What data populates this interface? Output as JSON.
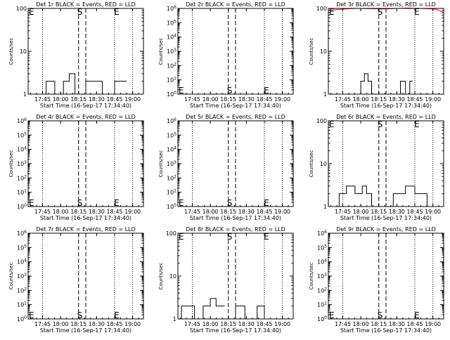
{
  "chart_data": [
    {
      "type": "line",
      "scale": "log",
      "title": "Det 1r BLACK = Events, RED = LLD",
      "xlabel": "Start Time (16-Sep-17 17:34:40)",
      "ylabel": "Counts/sec",
      "xticks": [
        "17:45",
        "18:00",
        "18:15",
        "18:30",
        "18:45",
        "19:00"
      ],
      "yticks": [
        {
          "label": "1",
          "sup": ""
        },
        {
          "label": "10",
          "sup": ""
        },
        {
          "label": "100",
          "sup": ""
        }
      ],
      "ylim": [
        1,
        100
      ],
      "markers": {
        "S": "S",
        "E": "E"
      },
      "marker_y": 100,
      "series": [
        {
          "color": "#000000",
          "segments": [
            {
              "x": [
                17.64,
                17.8,
                17.8,
                17.92,
                17.92,
                18.04,
                18.04,
                18.12,
                18.12,
                18.2,
                18.2
              ],
              "y": [
                1,
                1,
                2,
                2,
                1,
                1,
                2,
                2,
                3,
                3,
                1
              ]
            },
            {
              "x": [
                18.35,
                18.35,
                18.58,
                18.58,
                18.75,
                18.75,
                18.92
              ],
              "y": [
                1,
                2,
                2,
                1,
                1,
                2,
                2
              ]
            }
          ]
        }
      ]
    },
    {
      "type": "line",
      "scale": "log",
      "title": "Det 2r BLACK = Events, RED = LLD",
      "xlabel": "Start Time (16-Sep-17 17:34:40)",
      "ylabel": "Counts/sec",
      "xticks": [
        "17:45",
        "18:00",
        "18:15",
        "18:30",
        "18:45",
        "19:00"
      ],
      "yticks": [
        {
          "label": "10",
          "sup": "0"
        },
        {
          "label": "10",
          "sup": "1"
        },
        {
          "label": "10",
          "sup": "2"
        },
        {
          "label": "10",
          "sup": "3"
        },
        {
          "label": "10",
          "sup": "4"
        },
        {
          "label": "10",
          "sup": "5"
        },
        {
          "label": "10",
          "sup": "6"
        }
      ],
      "ylim": [
        1,
        1000000
      ],
      "markers": {
        "S": "S",
        "E": "E"
      },
      "marker_y": 1,
      "series": []
    },
    {
      "type": "line",
      "scale": "log",
      "title": "Det 3r BLACK = Events, RED = LLD",
      "xlabel": "Start Time (16-Sep-17 17:34:40)",
      "ylabel": "Counts/sec",
      "xticks": [
        "17:45",
        "18:00",
        "18:15",
        "18:30",
        "18:45",
        "19:00"
      ],
      "yticks": [
        {
          "label": "1",
          "sup": ""
        },
        {
          "label": "10",
          "sup": ""
        },
        {
          "label": "100",
          "sup": ""
        }
      ],
      "ylim": [
        1,
        100
      ],
      "markers": {
        "S": "S",
        "E": "E"
      },
      "marker_y": 100,
      "series": [
        {
          "color": "#ff0000",
          "segments": [
            {
              "x": [
                17.58,
                17.7,
                17.82,
                17.95,
                18.05,
                18.2,
                18.35,
                18.5,
                18.65,
                18.8,
                18.95,
                19.05,
                19.1,
                19.15
              ],
              "y": [
                90,
                95,
                98,
                100,
                99,
                98,
                97,
                100,
                102,
                100,
                98,
                95,
                88,
                80
              ]
            }
          ]
        },
        {
          "color": "#000000",
          "segments": [
            {
              "x": [
                18.0,
                18.0,
                18.05,
                18.05,
                18.1,
                18.1,
                18.15,
                18.15,
                18.2
              ],
              "y": [
                1,
                2,
                2,
                3,
                3,
                2,
                2,
                1,
                1
              ]
            },
            {
              "x": [
                18.55,
                18.55,
                18.62,
                18.62,
                18.68,
                18.68,
                18.72
              ],
              "y": [
                1,
                2,
                2,
                1,
                1,
                2,
                2
              ]
            }
          ]
        }
      ]
    },
    {
      "type": "line",
      "scale": "log",
      "title": "Det 4r BLACK = Events, RED = LLD",
      "xlabel": "Start Time (16-Sep-17 17:34:40)",
      "ylabel": "Counts/sec",
      "xticks": [
        "17:45",
        "18:00",
        "18:15",
        "18:30",
        "18:45",
        "19:00"
      ],
      "yticks": [
        {
          "label": "10",
          "sup": "0"
        },
        {
          "label": "10",
          "sup": "1"
        },
        {
          "label": "10",
          "sup": "2"
        },
        {
          "label": "10",
          "sup": "3"
        },
        {
          "label": "10",
          "sup": "4"
        },
        {
          "label": "10",
          "sup": "5"
        },
        {
          "label": "10",
          "sup": "6"
        }
      ],
      "ylim": [
        1,
        1000000
      ],
      "markers": {
        "S": "S",
        "E": "E"
      },
      "marker_y": 1,
      "series": []
    },
    {
      "type": "line",
      "scale": "log",
      "title": "Det 5r BLACK = Events, RED = LLD",
      "xlabel": "Start Time (16-Sep-17 17:34:40)",
      "ylabel": "Counts/sec",
      "xticks": [
        "17:45",
        "18:00",
        "18:15",
        "18:30",
        "18:45",
        "19:00"
      ],
      "yticks": [
        {
          "label": "10",
          "sup": "0"
        },
        {
          "label": "10",
          "sup": "1"
        },
        {
          "label": "10",
          "sup": "2"
        },
        {
          "label": "10",
          "sup": "3"
        },
        {
          "label": "10",
          "sup": "4"
        },
        {
          "label": "10",
          "sup": "5"
        },
        {
          "label": "10",
          "sup": "6"
        }
      ],
      "ylim": [
        1,
        1000000
      ],
      "markers": {
        "S": "S",
        "E": "E"
      },
      "marker_y": 1,
      "series": []
    },
    {
      "type": "line",
      "scale": "log",
      "title": "Det 6r BLACK = Events, RED = LLD",
      "xlabel": "Start Time (16-Sep-17 17:34:40)",
      "ylabel": "Counts/sec",
      "xticks": [
        "17:45",
        "18:00",
        "18:15",
        "18:30",
        "18:45",
        "19:00"
      ],
      "yticks": [
        {
          "label": "1",
          "sup": ""
        },
        {
          "label": "10",
          "sup": ""
        },
        {
          "label": "100",
          "sup": ""
        }
      ],
      "ylim": [
        1,
        100
      ],
      "markers": {
        "S": "S",
        "E": "E"
      },
      "marker_y": 100,
      "series": [
        {
          "color": "#000000",
          "segments": [
            {
              "x": [
                17.7,
                17.7,
                17.8,
                17.8,
                17.92,
                17.92,
                18.02,
                18.02,
                18.08,
                18.08,
                18.15,
                18.15,
                18.2
              ],
              "y": [
                1,
                2,
                2,
                3,
                3,
                2,
                2,
                3,
                3,
                2,
                2,
                1,
                1
              ]
            },
            {
              "x": [
                18.45,
                18.45,
                18.62,
                18.62,
                18.75,
                18.75,
                18.92,
                18.92,
                19.0
              ],
              "y": [
                1,
                2,
                2,
                3,
                3,
                2,
                2,
                1,
                1
              ]
            }
          ]
        }
      ]
    },
    {
      "type": "line",
      "scale": "log",
      "title": "Det 7r BLACK = Events, RED = LLD",
      "xlabel": "Start Time (16-Sep-17 17:34:40)",
      "ylabel": "Counts/sec",
      "xticks": [
        "17:45",
        "18:00",
        "18:15",
        "18:30",
        "18:45",
        "19:00"
      ],
      "yticks": [
        {
          "label": "10",
          "sup": "0"
        },
        {
          "label": "10",
          "sup": "1"
        },
        {
          "label": "10",
          "sup": "2"
        },
        {
          "label": "10",
          "sup": "3"
        },
        {
          "label": "10",
          "sup": "4"
        },
        {
          "label": "10",
          "sup": "5"
        },
        {
          "label": "10",
          "sup": "6"
        }
      ],
      "ylim": [
        1,
        1000000
      ],
      "markers": {
        "S": "S",
        "E": "E"
      },
      "marker_y": 1,
      "series": []
    },
    {
      "type": "line",
      "scale": "log",
      "title": "Det 8r BLACK = Events, RED = LLD",
      "xlabel": "Start Time (16-Sep-17 17:34:40)",
      "ylabel": "Counts/sec",
      "xticks": [
        "17:45",
        "18:00",
        "18:15",
        "18:30",
        "18:45",
        "19:00"
      ],
      "yticks": [
        {
          "label": "1",
          "sup": ""
        },
        {
          "label": "10",
          "sup": ""
        },
        {
          "label": "100",
          "sup": ""
        }
      ],
      "ylim": [
        1,
        100
      ],
      "markers": {
        "S": "S",
        "E": "E"
      },
      "marker_y": 100,
      "series": [
        {
          "color": "#000000",
          "segments": [
            {
              "x": [
                17.6,
                17.6,
                17.78,
                17.78,
                17.9,
                17.9,
                18.0,
                18.0,
                18.08,
                18.08,
                18.2
              ],
              "y": [
                1,
                2,
                2,
                1,
                1,
                2,
                2,
                3,
                3,
                2,
                2
              ]
            },
            {
              "x": [
                18.35,
                18.35,
                18.48,
                18.48,
                18.65,
                18.65,
                18.75,
                18.75,
                19.0
              ],
              "y": [
                1,
                2,
                2,
                1,
                1,
                2,
                2,
                1,
                1
              ]
            }
          ]
        }
      ]
    },
    {
      "type": "line",
      "scale": "log",
      "title": "Det 9r BLACK = Events, RED = LLD",
      "xlabel": "Start Time (16-Sep-17 17:34:40)",
      "ylabel": "Counts/sec",
      "xticks": [
        "17:45",
        "18:00",
        "18:15",
        "18:30",
        "18:45",
        "19:00"
      ],
      "yticks": [
        {
          "label": "10",
          "sup": "0"
        },
        {
          "label": "10",
          "sup": "1"
        },
        {
          "label": "10",
          "sup": "2"
        },
        {
          "label": "10",
          "sup": "3"
        },
        {
          "label": "10",
          "sup": "4"
        },
        {
          "label": "10",
          "sup": "5"
        },
        {
          "label": "10",
          "sup": "6"
        }
      ],
      "ylim": [
        1,
        1000000
      ],
      "markers": {
        "S": "S",
        "E": "E"
      },
      "marker_y": 1,
      "series": []
    }
  ]
}
